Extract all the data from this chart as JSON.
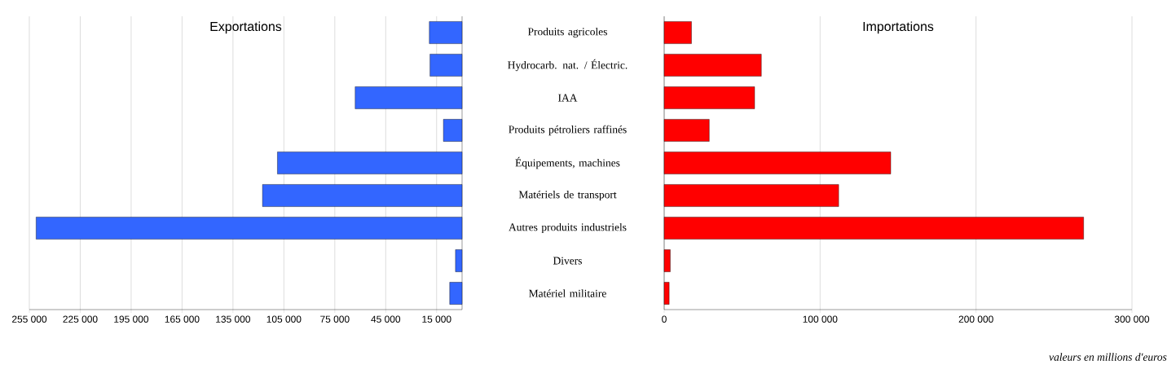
{
  "chart_data": [
    {
      "type": "bar",
      "orientation": "horizontal",
      "title": "Exportations",
      "categories": [
        null,
        null,
        null,
        null,
        null,
        null,
        null,
        null,
        null
      ],
      "values": [
        19300,
        18900,
        63000,
        11000,
        108800,
        117600,
        251000,
        3900,
        7300
      ],
      "color": "#3366ff",
      "xlim": [
        255000,
        0
      ],
      "xticks": [
        {
          "value": 255000,
          "label": "255 000"
        },
        {
          "value": 225000,
          "label": "225 000"
        },
        {
          "value": 195000,
          "label": "195 000"
        },
        {
          "value": 165000,
          "label": "165 000"
        },
        {
          "value": 135000,
          "label": "135 000"
        },
        {
          "value": 105000,
          "label": "105 000"
        },
        {
          "value": 75000,
          "label": "75 000"
        },
        {
          "value": 45000,
          "label": "45 000"
        },
        {
          "value": 15000,
          "label": "15 000"
        }
      ],
      "grid": "x",
      "tick_labels": "x"
    },
    {
      "type": "bar",
      "orientation": "horizontal",
      "title": "Importations",
      "categories": [
        "Produits agricoles",
        "Hydrocarb. nat. / Électric.",
        "IAA",
        "Produits pétroliers raffinés",
        "Équipements, machines",
        "Matériels de transport",
        "Autres produits industriels",
        "Divers",
        "Matériel militaire"
      ],
      "values": [
        17500,
        62300,
        58000,
        28900,
        145300,
        111900,
        269000,
        3900,
        3200
      ],
      "color": "#ff0000",
      "xlim": [
        0,
        300000
      ],
      "xticks": [
        0,
        {
          "value": 100000,
          "label": "100 000"
        },
        {
          "value": 200000,
          "label": "200 000"
        },
        {
          "value": 300000,
          "label": "300 000"
        }
      ],
      "grid": "x",
      "annotations": [
        "valeurs en millions d'euros"
      ]
    }
  ]
}
